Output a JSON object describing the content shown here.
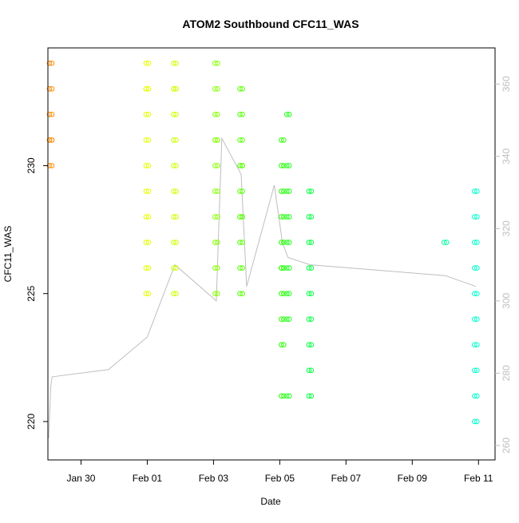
{
  "chart_data": {
    "type": "scatter",
    "title": "ATOM2 Southbound CFC11_WAS",
    "xlabel": "Date",
    "ylabel": "CFC11_WAS",
    "x_ticks": [
      "Jan 30",
      "Feb 01",
      "Feb 03",
      "Feb 05",
      "Feb 07",
      "Feb 09",
      "Feb 11"
    ],
    "y_ticks": [
      "220",
      "225",
      "230"
    ],
    "y2_ticks": [
      "260",
      "280",
      "300",
      "320",
      "340",
      "360"
    ],
    "xlim": [
      "2017-01-29 00:00",
      "2017-02-11 12:00"
    ],
    "ylim": [
      218.5,
      234.6
    ],
    "y2lim": [
      256,
      370
    ],
    "grid": false,
    "colors": {
      "axis": "#000000",
      "secondary_axis": "#bebebe",
      "line": "#bebebe"
    },
    "point_series": [
      {
        "x": "2017-01-29 02:00",
        "color": "#ff8c00",
        "y": [
          234,
          233,
          232,
          231,
          231,
          230
        ]
      },
      {
        "x": "2017-02-01 00:00",
        "color": "#e6ff00",
        "y": [
          234,
          233,
          233,
          232,
          231,
          230,
          229,
          228,
          227,
          226,
          225
        ]
      },
      {
        "x": "2017-02-01 20:00",
        "color": "#ccff00",
        "y": [
          234,
          233,
          233,
          232,
          231,
          230,
          229,
          228,
          227,
          226,
          225
        ]
      },
      {
        "x": "2017-02-03 02:00",
        "color": "#88ff00",
        "y": [
          234,
          233,
          232,
          231,
          231,
          230,
          229,
          228,
          227,
          226,
          225
        ]
      },
      {
        "x": "2017-02-03 20:00",
        "color": "#55ff00",
        "y": [
          233,
          232,
          231,
          230,
          230,
          229,
          228,
          228,
          227,
          226,
          225
        ]
      },
      {
        "x": "2017-02-05 02:00",
        "color": "#2aff00",
        "y": [
          231,
          230,
          229,
          228,
          227,
          226,
          226,
          225,
          224,
          223,
          221
        ]
      },
      {
        "x": "2017-02-05 06:00",
        "color": "#22ff20",
        "y": [
          232,
          230,
          229,
          228,
          227,
          226,
          225,
          224,
          221
        ]
      },
      {
        "x": "2017-02-05 22:00",
        "color": "#00ff40",
        "y": [
          229,
          228,
          227,
          226,
          225,
          224,
          223,
          222,
          221
        ]
      },
      {
        "x": "2017-02-10 00:00",
        "color": "#00ffa0",
        "y": [
          227
        ]
      },
      {
        "x": "2017-02-10 22:00",
        "color": "#00ffcc",
        "y": [
          229,
          228,
          227,
          226,
          225,
          224,
          223,
          222,
          221,
          220
        ]
      }
    ],
    "trace_y2": [
      {
        "x": "2017-01-29 00:30",
        "y": 262
      },
      {
        "x": "2017-01-29 02:00",
        "y": 276
      },
      {
        "x": "2017-01-29 03:00",
        "y": 279
      },
      {
        "x": "2017-01-30 20:00",
        "y": 281
      },
      {
        "x": "2017-02-01 00:00",
        "y": 290
      },
      {
        "x": "2017-02-01 06:00",
        "y": 296
      },
      {
        "x": "2017-02-01 20:00",
        "y": 310
      },
      {
        "x": "2017-02-03 02:00",
        "y": 300
      },
      {
        "x": "2017-02-03 06:00",
        "y": 345
      },
      {
        "x": "2017-02-03 20:00",
        "y": 335
      },
      {
        "x": "2017-02-04 00:00",
        "y": 304
      },
      {
        "x": "2017-02-04 20:00",
        "y": 332
      },
      {
        "x": "2017-02-05 02:00",
        "y": 316
      },
      {
        "x": "2017-02-05 06:00",
        "y": 312
      },
      {
        "x": "2017-02-05 22:00",
        "y": 310
      },
      {
        "x": "2017-02-10 00:00",
        "y": 307
      },
      {
        "x": "2017-02-10 22:00",
        "y": 304
      }
    ]
  }
}
